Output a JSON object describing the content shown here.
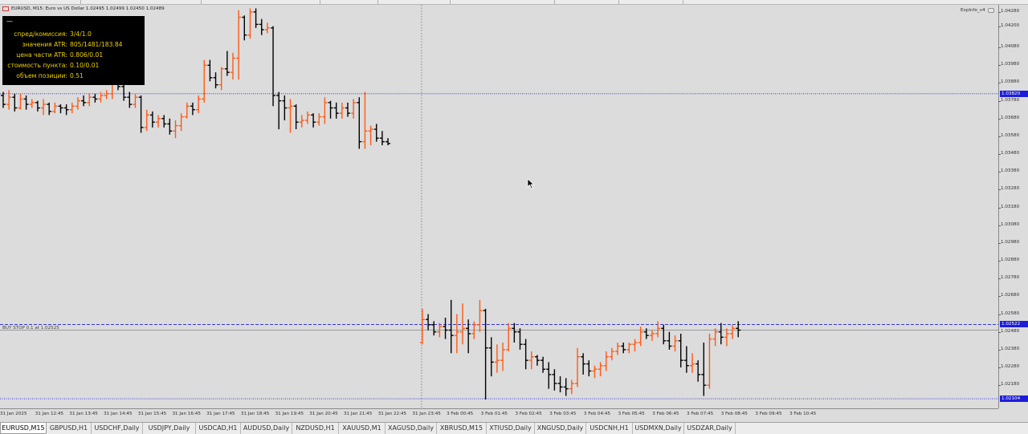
{
  "window": {
    "title": "EURUSD, M15: Euro vs US Dollar 1.02495 1.02499 1.02450 1.02489",
    "expert_label": "ExpInfo_v4"
  },
  "info_panel": {
    "header": "—",
    "rows": [
      {
        "label": "спред/комиссия:",
        "value": "3/4/1.0"
      },
      {
        "label": "значения ATR:",
        "value": "805/1481/183.84"
      },
      {
        "label": "цена части ATR:",
        "value": "0.806/0.01"
      },
      {
        "label": "стоимость пункта:",
        "value": "0.10/0.01"
      },
      {
        "label": "объем позиции:",
        "value": "0.51"
      }
    ]
  },
  "order": {
    "label": "BUY STOP 0.1 at 1.02525"
  },
  "price_axis": {
    "ticks": [
      "1.04280",
      "1.04200",
      "1.04080",
      "1.03980",
      "1.03880",
      "1.03780",
      "1.03680",
      "1.03580",
      "1.03480",
      "1.03380",
      "1.03280",
      "1.03180",
      "1.03080",
      "1.02980",
      "1.02880",
      "1.02780",
      "1.02680",
      "1.02580",
      "1.02480",
      "1.02380",
      "1.02280",
      "1.02180"
    ],
    "badges": [
      {
        "text": "1.03820",
        "color": "#1e1ed8"
      },
      {
        "text": "1.02522",
        "color": "#1e1ed8"
      },
      {
        "text": "1.02104",
        "color": "#1e1ed8"
      }
    ]
  },
  "time_axis": {
    "labels": [
      "31 Jan 2025",
      "31 Jan 12:45",
      "31 Jan 13:45",
      "31 Jan 14:45",
      "31 Jan 15:45",
      "31 Jan 16:45",
      "31 Jan 17:45",
      "31 Jan 18:45",
      "31 Jan 19:45",
      "31 Jan 20:45",
      "31 Jan 21:45",
      "31 Jan 22:45",
      "31 Jan 23:45",
      "3 Feb 00:45",
      "3 Feb 01:45",
      "3 Feb 02:45",
      "3 Feb 03:45",
      "3 Feb 04:45",
      "3 Feb 05:45",
      "3 Feb 06:45",
      "3 Feb 07:45",
      "3 Feb 08:45",
      "3 Feb 09:45",
      "3 Feb 10:45"
    ]
  },
  "symbol_tabs": [
    {
      "label": "EURUSD,M15",
      "active": true
    },
    {
      "label": "GBPUSD,H1"
    },
    {
      "label": "USDCHF,Daily"
    },
    {
      "label": "USDJPY,Daily"
    },
    {
      "label": "USDCAD,H1"
    },
    {
      "label": "AUDUSD,Daily"
    },
    {
      "label": "NZDUSD,H1"
    },
    {
      "label": "XAUUSD,M1"
    },
    {
      "label": "XAGUSD,Daily"
    },
    {
      "label": "XBRUSD,M15"
    },
    {
      "label": "XTIUSD,Daily"
    },
    {
      "label": "XNGUSD,Daily"
    },
    {
      "label": "USDCNH,H1"
    },
    {
      "label": "USDMXN,Daily"
    },
    {
      "label": "USDZAR,Daily"
    }
  ],
  "colors": {
    "bull": "#ff5a14",
    "bear": "#000000",
    "level_line": "#1e1ed8",
    "background": "#dcdcdc",
    "panel_text": "#f0d000"
  },
  "chart_data": {
    "type": "ohlc",
    "symbol": "EURUSD",
    "timeframe": "M15",
    "ylim": [
      1.0205,
      1.0432
    ],
    "levels": [
      {
        "price": 1.0382,
        "style": "dotted"
      },
      {
        "price": 1.02522,
        "style": "dashed"
      },
      {
        "price": 1.02104,
        "style": "dotted"
      }
    ],
    "crosshair_x_index": 73,
    "bars": [
      [
        1.0381,
        1.0383,
        1.0374,
        1.0376
      ],
      [
        1.0376,
        1.0384,
        1.0373,
        1.038
      ],
      [
        1.038,
        1.0382,
        1.0372,
        1.0374
      ],
      [
        1.0374,
        1.0382,
        1.0373,
        1.0379
      ],
      [
        1.0379,
        1.0381,
        1.0373,
        1.0376
      ],
      [
        1.0376,
        1.0379,
        1.0374,
        1.0377
      ],
      [
        1.0377,
        1.0378,
        1.0372,
        1.0374
      ],
      [
        1.0374,
        1.0379,
        1.037,
        1.0376
      ],
      [
        1.0376,
        1.0377,
        1.037,
        1.0372
      ],
      [
        1.0372,
        1.0377,
        1.0371,
        1.0375
      ],
      [
        1.0375,
        1.0376,
        1.0371,
        1.0374
      ],
      [
        1.0374,
        1.0376,
        1.037,
        1.0373
      ],
      [
        1.0373,
        1.0377,
        1.0371,
        1.0375
      ],
      [
        1.0375,
        1.038,
        1.0373,
        1.0378
      ],
      [
        1.0378,
        1.0381,
        1.0375,
        1.0377
      ],
      [
        1.0377,
        1.0382,
        1.0375,
        1.038
      ],
      [
        1.038,
        1.0382,
        1.0377,
        1.0379
      ],
      [
        1.0379,
        1.0383,
        1.0377,
        1.0381
      ],
      [
        1.0381,
        1.0384,
        1.0379,
        1.0382
      ],
      [
        1.0382,
        1.0396,
        1.0379,
        1.0392
      ],
      [
        1.0392,
        1.0393,
        1.0384,
        1.0386
      ],
      [
        1.0386,
        1.0387,
        1.0378,
        1.038
      ],
      [
        1.038,
        1.0383,
        1.0374,
        1.0376
      ],
      [
        1.0376,
        1.0382,
        1.0374,
        1.038
      ],
      [
        1.038,
        1.0381,
        1.036,
        1.0363
      ],
      [
        1.0363,
        1.0373,
        1.0361,
        1.037
      ],
      [
        1.037,
        1.0372,
        1.0363,
        1.0366
      ],
      [
        1.0366,
        1.037,
        1.0363,
        1.0368
      ],
      [
        1.0368,
        1.037,
        1.0363,
        1.0365
      ],
      [
        1.0365,
        1.0368,
        1.0359,
        1.0361
      ],
      [
        1.0361,
        1.0367,
        1.0357,
        1.0364
      ],
      [
        1.0364,
        1.0371,
        1.0361,
        1.0369
      ],
      [
        1.0369,
        1.0377,
        1.0368,
        1.0375
      ],
      [
        1.0375,
        1.0377,
        1.037,
        1.0373
      ],
      [
        1.0373,
        1.0381,
        1.0371,
        1.0379
      ],
      [
        1.0379,
        1.0401,
        1.0377,
        1.0398
      ],
      [
        1.0398,
        1.0401,
        1.0389,
        1.0391
      ],
      [
        1.0391,
        1.0394,
        1.0385,
        1.0387
      ],
      [
        1.0387,
        1.0397,
        1.0384,
        1.0396
      ],
      [
        1.0396,
        1.0406,
        1.0392,
        1.0394
      ],
      [
        1.0394,
        1.0405,
        1.039,
        1.0402
      ],
      [
        1.0402,
        1.0429,
        1.039,
        1.0425
      ],
      [
        1.0425,
        1.0426,
        1.0412,
        1.0415
      ],
      [
        1.0415,
        1.043,
        1.0413,
        1.0428
      ],
      [
        1.0428,
        1.043,
        1.0419,
        1.0421
      ],
      [
        1.0421,
        1.0424,
        1.0415,
        1.0418
      ],
      [
        1.0418,
        1.0422,
        1.0416,
        1.0419
      ],
      [
        1.0419,
        1.042,
        1.0375,
        1.0381
      ],
      [
        1.0381,
        1.0383,
        1.0362,
        1.0378
      ],
      [
        1.0378,
        1.0381,
        1.0367,
        1.0374
      ],
      [
        1.0374,
        1.0379,
        1.036,
        1.0375
      ],
      [
        1.0375,
        1.0376,
        1.0362,
        1.0366
      ],
      [
        1.0366,
        1.037,
        1.0363,
        1.0367
      ],
      [
        1.0367,
        1.0372,
        1.0365,
        1.037
      ],
      [
        1.037,
        1.0371,
        1.0363,
        1.0366
      ],
      [
        1.0366,
        1.0371,
        1.0364,
        1.0369
      ],
      [
        1.0369,
        1.038,
        1.0365,
        1.0377
      ],
      [
        1.0377,
        1.0378,
        1.0368,
        1.0374
      ],
      [
        1.0374,
        1.0377,
        1.0368,
        1.0371
      ],
      [
        1.0371,
        1.0377,
        1.0368,
        1.0374
      ],
      [
        1.0374,
        1.0377,
        1.0369,
        1.0371
      ],
      [
        1.0371,
        1.0379,
        1.0368,
        1.0377
      ],
      [
        1.0377,
        1.038,
        1.0351,
        1.0355
      ],
      [
        1.0355,
        1.0383,
        1.0351,
        1.0361
      ],
      [
        1.0361,
        1.0364,
        1.0353,
        1.0362
      ],
      [
        1.0362,
        1.0365,
        1.0355,
        1.0357
      ],
      [
        1.0357,
        1.0361,
        1.0353,
        1.0355
      ],
      [
        1.0355,
        1.0357,
        1.0353,
        1.0354
      ]
    ],
    "bars_segment2_start_index": 73,
    "bars2": [
      [
        1.0242,
        1.0261,
        1.0241,
        1.0255
      ],
      [
        1.0255,
        1.0258,
        1.0249,
        1.0252
      ],
      [
        1.0252,
        1.0254,
        1.0246,
        1.0248
      ],
      [
        1.0248,
        1.0253,
        1.0245,
        1.0251
      ],
      [
        1.0251,
        1.0256,
        1.0244,
        1.0249
      ],
      [
        1.0249,
        1.0266,
        1.0236,
        1.0246
      ],
      [
        1.0246,
        1.0258,
        1.0236,
        1.0248
      ],
      [
        1.0248,
        1.0264,
        1.0241,
        1.025
      ],
      [
        1.025,
        1.0255,
        1.0236,
        1.0247
      ],
      [
        1.0247,
        1.0254,
        1.0244,
        1.0252
      ],
      [
        1.0252,
        1.0266,
        1.0248,
        1.026
      ],
      [
        1.026,
        1.0261,
        1.021,
        1.0239
      ],
      [
        1.0239,
        1.0245,
        1.0223,
        1.0231
      ],
      [
        1.0231,
        1.0241,
        1.0225,
        1.0232
      ],
      [
        1.0232,
        1.0242,
        1.0226,
        1.0238
      ],
      [
        1.0238,
        1.0253,
        1.0237,
        1.025
      ],
      [
        1.025,
        1.0253,
        1.0242,
        1.0248
      ],
      [
        1.0248,
        1.025,
        1.0238,
        1.0241
      ],
      [
        1.0241,
        1.0244,
        1.0227,
        1.0232
      ],
      [
        1.0232,
        1.0237,
        1.0227,
        1.0234
      ],
      [
        1.0234,
        1.0235,
        1.0229,
        1.0232
      ],
      [
        1.0232,
        1.0234,
        1.0225,
        1.0227
      ],
      [
        1.0227,
        1.0231,
        1.0216,
        1.0224
      ],
      [
        1.0224,
        1.0227,
        1.0215,
        1.0219
      ],
      [
        1.0219,
        1.0223,
        1.0214,
        1.0217
      ],
      [
        1.0217,
        1.0222,
        1.0212,
        1.0216
      ],
      [
        1.0216,
        1.0221,
        1.0213,
        1.0219
      ],
      [
        1.0219,
        1.0239,
        1.0217,
        1.0234
      ],
      [
        1.0234,
        1.0236,
        1.0224,
        1.023
      ],
      [
        1.023,
        1.0232,
        1.0223,
        1.0226
      ],
      [
        1.0226,
        1.0229,
        1.0222,
        1.0227
      ],
      [
        1.0227,
        1.0231,
        1.0223,
        1.0229
      ],
      [
        1.0229,
        1.0237,
        1.0226,
        1.0234
      ],
      [
        1.0234,
        1.0239,
        1.0232,
        1.0237
      ],
      [
        1.0237,
        1.0242,
        1.0235,
        1.024
      ],
      [
        1.024,
        1.0242,
        1.0236,
        1.0238
      ],
      [
        1.0238,
        1.0242,
        1.0236,
        1.0241
      ],
      [
        1.0241,
        1.0244,
        1.0237,
        1.0242
      ],
      [
        1.0242,
        1.0251,
        1.024,
        1.0248
      ],
      [
        1.0248,
        1.025,
        1.0244,
        1.0246
      ],
      [
        1.0246,
        1.0249,
        1.0243,
        1.0247
      ],
      [
        1.0247,
        1.0254,
        1.0245,
        1.025
      ],
      [
        1.025,
        1.0252,
        1.0241,
        1.0243
      ],
      [
        1.0243,
        1.0248,
        1.0238,
        1.024
      ],
      [
        1.024,
        1.0246,
        1.0237,
        1.0243
      ],
      [
        1.0243,
        1.0247,
        1.0228,
        1.0232
      ],
      [
        1.0232,
        1.024,
        1.0225,
        1.0229
      ],
      [
        1.0229,
        1.0236,
        1.0225,
        1.023
      ],
      [
        1.023,
        1.0232,
        1.022,
        1.0224
      ],
      [
        1.0224,
        1.0242,
        1.0212,
        1.0218
      ],
      [
        1.0218,
        1.0247,
        1.0216,
        1.0244
      ],
      [
        1.0244,
        1.025,
        1.024,
        1.0248
      ],
      [
        1.0248,
        1.0253,
        1.0241,
        1.0245
      ],
      [
        1.0245,
        1.025,
        1.024,
        1.0247
      ],
      [
        1.0247,
        1.0252,
        1.0244,
        1.025
      ],
      [
        1.025,
        1.0254,
        1.0245,
        1.0249
      ]
    ]
  }
}
